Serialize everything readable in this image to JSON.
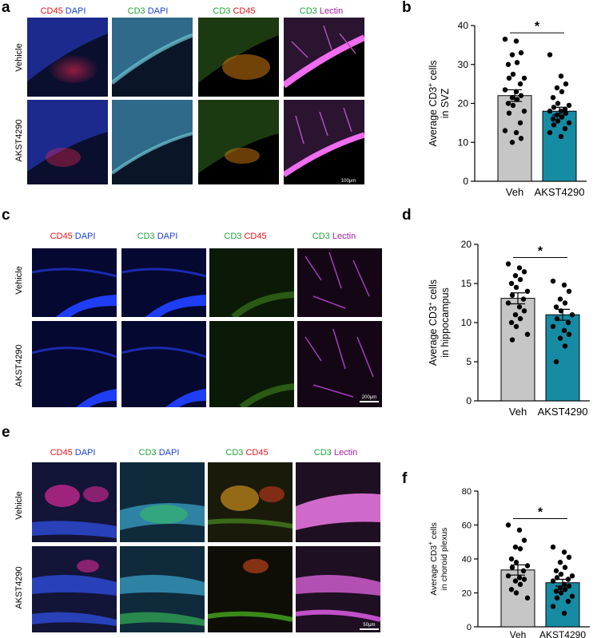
{
  "panel_labels": [
    "a",
    "b",
    "c",
    "d",
    "e",
    "f"
  ],
  "column_headers": [
    [
      {
        "text": "CD45",
        "color": "#e8141b"
      },
      {
        "text": " DAPI",
        "color": "#1a3fe0"
      }
    ],
    [
      {
        "text": "CD3",
        "color": "#1fa43b"
      },
      {
        "text": " DAPI",
        "color": "#1a3fe0"
      }
    ],
    [
      {
        "text": "CD3",
        "color": "#1fa43b"
      },
      {
        "text": " CD45",
        "color": "#e8141b"
      }
    ],
    [
      {
        "text": "CD3",
        "color": "#1fa43b"
      },
      {
        "text": " Lectin",
        "color": "#a51ea5"
      }
    ]
  ],
  "row_labels": [
    "Vehicle",
    "AKST4290"
  ],
  "scale_bars": [
    "100μm",
    "200μm",
    "50μm"
  ],
  "colors": {
    "veh_bar": "#c6c6c6",
    "akst_bar": "#168ba4",
    "red": "#e8141b",
    "green": "#1fa43b",
    "blue": "#1a3fe0",
    "magenta": "#a51ea5"
  },
  "chart_data": [
    {
      "type": "bar",
      "categories": [
        "Veh",
        "AKST4290"
      ],
      "values": [
        22.0,
        18.0
      ],
      "sem": [
        1.5,
        1.0
      ],
      "ylabel_main": "Average CD3",
      "ylabel_sup": "+",
      "ylabel_rest": " cells",
      "ylabel_line2": "in SVZ",
      "ylim": [
        0,
        40
      ],
      "yticks": [
        0,
        10,
        20,
        30,
        40
      ],
      "significance": "*",
      "points": [
        [
          36.5,
          36,
          33,
          32.5,
          30.5,
          30,
          27.5,
          26.5,
          26.5,
          25,
          23.5,
          23,
          22,
          21.5,
          21,
          20,
          19.5,
          18,
          17.5,
          15,
          13,
          12.5,
          11,
          10
        ],
        [
          32.5,
          27,
          25,
          24,
          23,
          21.5,
          20,
          19.5,
          19,
          18.5,
          18,
          18,
          17.5,
          17,
          16.5,
          16,
          15.5,
          15,
          14.5,
          13.5,
          12.5,
          11.5
        ]
      ]
    },
    {
      "type": "bar",
      "categories": [
        "Veh",
        "AKST4290"
      ],
      "values": [
        13.1,
        11.0
      ],
      "sem": [
        0.7,
        0.7
      ],
      "ylabel_main": "Average CD3",
      "ylabel_sup": "+",
      "ylabel_rest": " cells",
      "ylabel_line2": "in hippocampus",
      "ylim": [
        0,
        20
      ],
      "yticks": [
        0,
        5,
        10,
        15,
        20
      ],
      "significance": "*",
      "points": [
        [
          17.5,
          17,
          16.5,
          16,
          15.5,
          15,
          14.5,
          14,
          13.5,
          13,
          12.5,
          12,
          11.5,
          11,
          10.5,
          10,
          9.5,
          8.5,
          7.8
        ],
        [
          15.3,
          14.8,
          14,
          13,
          12.5,
          12,
          11.5,
          11,
          10.5,
          10,
          9.5,
          9,
          8.5,
          8,
          7,
          5
        ]
      ]
    },
    {
      "type": "bar",
      "categories": [
        "Veh",
        "AKST4290"
      ],
      "values": [
        33.5,
        26.0
      ],
      "sem": [
        3.0,
        2.0
      ],
      "ylabel_main": "Average CD3",
      "ylabel_sup": "+",
      "ylabel_rest": " cells",
      "ylabel_line2": "in choroid plexus",
      "ylim": [
        0,
        80
      ],
      "yticks": [
        0,
        20,
        40,
        60,
        80
      ],
      "significance": "*",
      "points": [
        [
          60,
          57,
          51,
          47,
          46,
          40,
          38,
          36,
          35,
          33,
          30,
          29,
          28,
          27,
          25,
          22,
          20,
          17
        ],
        [
          47,
          44,
          41,
          38,
          35,
          33,
          31,
          30,
          29,
          28,
          27,
          25,
          24,
          23,
          22,
          21,
          20,
          18,
          17,
          15,
          12,
          8
        ]
      ]
    }
  ]
}
